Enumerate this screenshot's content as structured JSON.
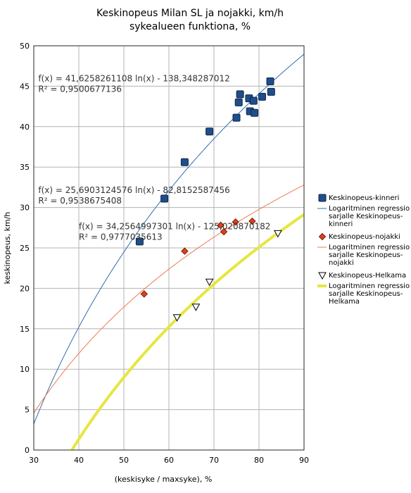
{
  "chart_data": {
    "type": "scatter",
    "title_line1": "Keskinopeus Milan SL ja nojakki, km/h",
    "title_line2": "sykealueen funktiona, %",
    "xlabel": "(keskisyke / maxsyke), %",
    "ylabel": "keskinopeus, km/h",
    "xlim": [
      30,
      90
    ],
    "ylim": [
      0,
      50
    ],
    "xticks": [
      30,
      40,
      50,
      60,
      70,
      80,
      90
    ],
    "yticks": [
      0,
      5,
      10,
      15,
      20,
      25,
      30,
      35,
      40,
      45,
      50
    ],
    "grid": true,
    "legend_position": "right",
    "series": [
      {
        "name": "Keskinopeus-kinneri",
        "marker": "square",
        "color": "#1f4e8c",
        "points": [
          [
            53.5,
            25.8
          ],
          [
            59,
            31.1
          ],
          [
            63.5,
            35.6
          ],
          [
            69,
            39.4
          ],
          [
            75,
            41.1
          ],
          [
            75.5,
            43.0
          ],
          [
            75.8,
            44.0
          ],
          [
            77.8,
            43.5
          ],
          [
            78,
            41.9
          ],
          [
            78.8,
            43.2
          ],
          [
            79,
            41.7
          ],
          [
            80.7,
            43.7
          ],
          [
            82.5,
            45.6
          ],
          [
            82.7,
            44.3
          ]
        ]
      },
      {
        "name": "Keskinopeus-nojakki",
        "marker": "diamond",
        "color": "#e0401c",
        "points": [
          [
            54.5,
            19.3
          ],
          [
            63.5,
            24.6
          ],
          [
            71.5,
            27.8
          ],
          [
            72.2,
            27.0
          ],
          [
            74.8,
            28.2
          ],
          [
            78.5,
            28.3
          ]
        ]
      },
      {
        "name": "Keskinopeus-Helkama",
        "marker": "triangle-down",
        "color": "#ffffff",
        "points": [
          [
            61.8,
            16.4
          ],
          [
            66,
            17.7
          ],
          [
            69,
            20.8
          ],
          [
            84.2,
            26.8
          ]
        ]
      }
    ],
    "trendlines": [
      {
        "legend": "Logaritminen regressio sarjalle Keskinopeus-kinneri",
        "legend_lines": [
          "Logaritminen regressio",
          "sarjalle Keskinopeus-",
          "kinneri"
        ],
        "a": 41.6258261108,
        "b": -138.348287012,
        "color": "#2f6fb0",
        "width": 1,
        "equation": "f(x) = 41,6258261108 ln(x) - 138,348287012",
        "r2": "R² = 0,9500677136"
      },
      {
        "legend": "Logaritminen regressio sarjalle Keskinopeus-nojakki",
        "legend_lines": [
          "Logaritminen regressio",
          "sarjalle Keskinopeus-",
          "nojakki"
        ],
        "a": 25.6903124576,
        "b": -82.8152587456,
        "color": "#f07a50",
        "width": 1,
        "equation": "f(x) = 25,6903124576 ln(x) - 82,8152587456",
        "r2": "R² = 0,9538675408"
      },
      {
        "legend": "Logaritminen regressio sarjalle Keskinopeus-Helkama",
        "legend_lines": [
          "Logaritminen regressio",
          "sarjalle Keskinopeus-",
          "Helkama"
        ],
        "a": 34.2564997301,
        "b": -125.020870182,
        "color": "#e6e640",
        "width": 4,
        "equation": "f(x) = 34,2564997301 ln(x) - 125,020870182",
        "r2": "R² = 0,9777035613"
      }
    ]
  }
}
